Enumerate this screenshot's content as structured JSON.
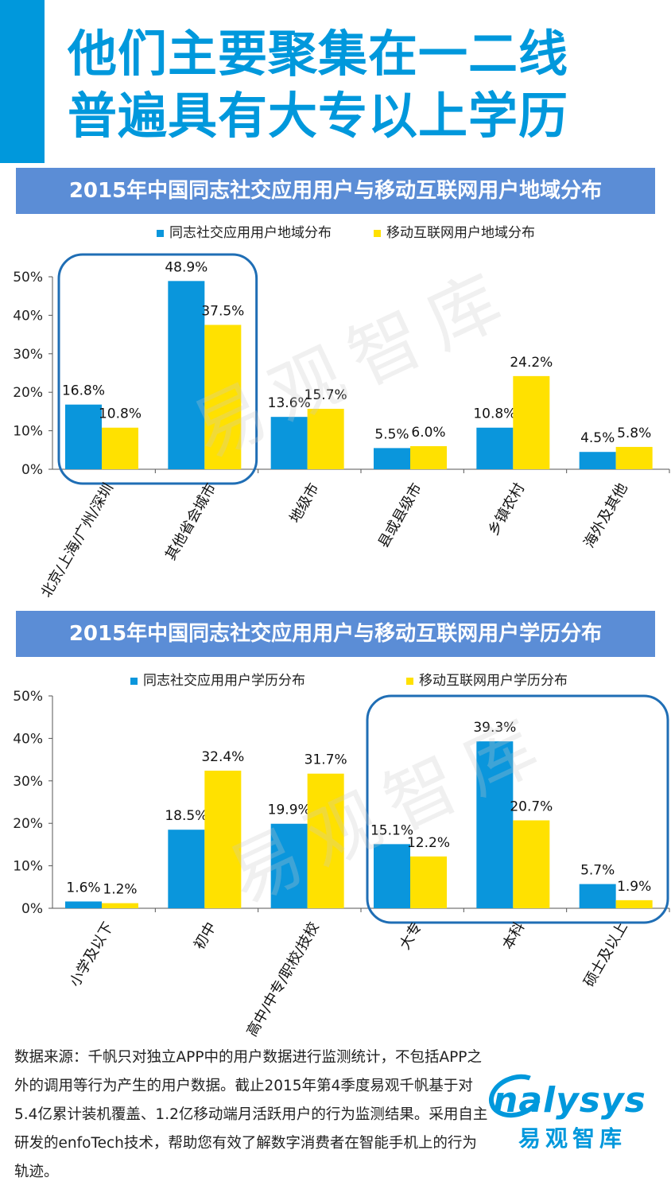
{
  "headline": {
    "line1": "他们主要聚集在一二线",
    "line2": "普遍具有大专以上学历"
  },
  "watermark": "易观智库",
  "colors": {
    "series1": "#0a96dc",
    "series2": "#ffe100",
    "accent": "#0098dc",
    "banner": "#5b8dd6",
    "highlight_border": "#1f6eb5"
  },
  "chart_data": [
    {
      "type": "bar",
      "title": "2015年中国同志社交应用用户与移动互联网用户地域分布",
      "categories": [
        "北京/上海/广州/深圳",
        "其他省会城市",
        "地级市",
        "县或县级市",
        "乡镇农村",
        "海外及其他"
      ],
      "series": [
        {
          "name": "同志社交应用用户地域分布",
          "values": [
            16.8,
            48.9,
            13.6,
            5.5,
            10.8,
            4.5
          ],
          "labels": [
            "16.8%",
            "48.9%",
            "13.6%",
            "5.5%",
            "10.8%",
            "4.5%"
          ]
        },
        {
          "name": "移动互联网用户地域分布",
          "values": [
            10.8,
            37.5,
            15.7,
            6.0,
            24.2,
            5.8
          ],
          "labels": [
            "10.8%",
            "37.5%",
            "15.7%",
            "6.0%",
            "24.2%",
            "5.8%"
          ]
        }
      ],
      "yticks": [
        "0%",
        "10%",
        "20%",
        "30%",
        "40%",
        "50%"
      ],
      "ylim": [
        0,
        50
      ],
      "legend": "top-center",
      "highlight_categories": [
        0,
        1
      ]
    },
    {
      "type": "bar",
      "title": "2015年中国同志社交应用用户与移动互联网用户学历分布",
      "categories": [
        "小学及以下",
        "初中",
        "高中/中专/职校/技校",
        "大专",
        "本科",
        "硕士及以上"
      ],
      "series": [
        {
          "name": "同志社交应用用户学历分布",
          "values": [
            1.6,
            18.5,
            19.9,
            15.1,
            39.3,
            5.7
          ],
          "labels": [
            "1.6%",
            "18.5%",
            "19.9%",
            "15.1%",
            "39.3%",
            "5.7%"
          ]
        },
        {
          "name": "移动互联网用户学历分布",
          "values": [
            1.2,
            32.4,
            31.7,
            12.2,
            20.7,
            1.9
          ],
          "labels": [
            "1.2%",
            "32.4%",
            "31.7%",
            "12.2%",
            "20.7%",
            "1.9%"
          ]
        }
      ],
      "yticks": [
        "0%",
        "10%",
        "20%",
        "30%",
        "40%",
        "50%"
      ],
      "ylim": [
        0,
        50
      ],
      "legend": "top-center",
      "highlight_categories": [
        3,
        4,
        5
      ]
    }
  ],
  "footer": {
    "source_text": "数据来源：千帆只对独立APP中的用户数据进行监测统计，不包括APP之外的调用等行为产生的用户数据。截止2015年第4季度易观千帆基于对5.4亿累计装机覆盖、1.2亿移动端月活跃用户的行为监测结果。采用自主研发的enfoTech技术，帮助您有效了解数字消费者在智能手机上的行为轨迹。",
    "logo_en": "nalysys",
    "logo_cn": "易观智库"
  }
}
